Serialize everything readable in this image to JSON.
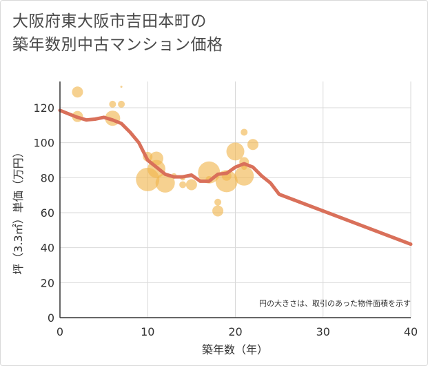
{
  "title_line1": "大阪府東大阪市吉田本町の",
  "title_line2": "築年数別中古マンション価格",
  "chart_data": {
    "type": "scatter",
    "xlabel": "築年数（年）",
    "ylabel": "坪（3.3㎡）単価（万円）",
    "xlim": [
      0,
      40
    ],
    "ylim": [
      0,
      135
    ],
    "x_ticks": [
      0,
      10,
      20,
      30,
      40
    ],
    "y_ticks": [
      0,
      20,
      40,
      60,
      80,
      100,
      120
    ],
    "grid": true,
    "note": "円の大きさは、取引のあった物件面積を示す",
    "colors": {
      "bubble": "#f0b44c",
      "trend": "#d9705a",
      "grid": "#d9d9d9"
    },
    "bubbles": [
      {
        "x": 2,
        "y": 129,
        "size": 8
      },
      {
        "x": 2,
        "y": 115,
        "size": 8
      },
      {
        "x": 6,
        "y": 122,
        "size": 5
      },
      {
        "x": 6,
        "y": 114,
        "size": 11
      },
      {
        "x": 7,
        "y": 132,
        "size": 1.5
      },
      {
        "x": 7,
        "y": 122,
        "size": 5
      },
      {
        "x": 10,
        "y": 92,
        "size": 7
      },
      {
        "x": 10,
        "y": 79,
        "size": 17
      },
      {
        "x": 11,
        "y": 91,
        "size": 10
      },
      {
        "x": 11,
        "y": 85,
        "size": 13
      },
      {
        "x": 12,
        "y": 77,
        "size": 14
      },
      {
        "x": 13,
        "y": 81,
        "size": 4
      },
      {
        "x": 14,
        "y": 76,
        "size": 5
      },
      {
        "x": 14,
        "y": 80,
        "size": 4
      },
      {
        "x": 15,
        "y": 76,
        "size": 8
      },
      {
        "x": 17,
        "y": 83,
        "size": 16
      },
      {
        "x": 17,
        "y": 79,
        "size": 5
      },
      {
        "x": 18,
        "y": 66,
        "size": 5
      },
      {
        "x": 18,
        "y": 61,
        "size": 8
      },
      {
        "x": 19,
        "y": 78,
        "size": 16
      },
      {
        "x": 19,
        "y": 81,
        "size": 7
      },
      {
        "x": 20,
        "y": 95,
        "size": 13
      },
      {
        "x": 21,
        "y": 106,
        "size": 5
      },
      {
        "x": 21,
        "y": 89,
        "size": 7
      },
      {
        "x": 21,
        "y": 81,
        "size": 14
      },
      {
        "x": 21,
        "y": 86,
        "size": 4
      },
      {
        "x": 22,
        "y": 99,
        "size": 8
      }
    ],
    "trend": {
      "x": [
        0,
        1,
        2,
        3,
        4,
        5,
        6,
        7,
        8,
        9,
        10,
        11,
        12,
        13,
        14,
        15,
        16,
        17,
        18,
        19,
        20,
        21,
        22,
        23,
        24,
        25,
        30,
        40
      ],
      "y": [
        118.5,
        116.5,
        114.5,
        113,
        113.5,
        114.5,
        113,
        111,
        106,
        100,
        90,
        86,
        82,
        80.5,
        80.5,
        81.5,
        78,
        78,
        82,
        82.5,
        86,
        88,
        86,
        81,
        77,
        70.5,
        61,
        42
      ]
    }
  }
}
